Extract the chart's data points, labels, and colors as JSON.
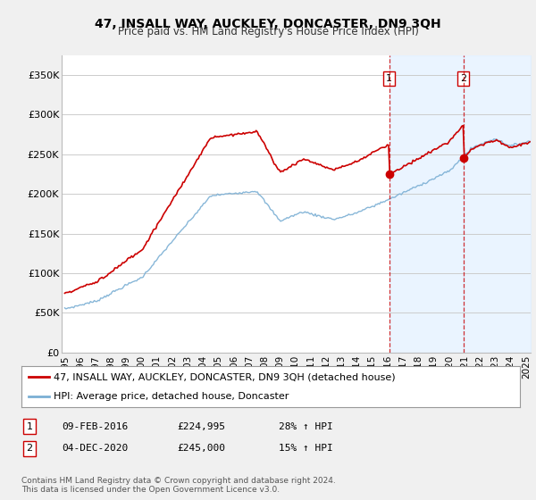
{
  "title": "47, INSALL WAY, AUCKLEY, DONCASTER, DN9 3QH",
  "subtitle": "Price paid vs. HM Land Registry's House Price Index (HPI)",
  "ylabel_ticks": [
    "£0",
    "£50K",
    "£100K",
    "£150K",
    "£200K",
    "£250K",
    "£300K",
    "£350K"
  ],
  "ytick_values": [
    0,
    50000,
    100000,
    150000,
    200000,
    250000,
    300000,
    350000
  ],
  "ylim": [
    0,
    375000
  ],
  "xlim_start": 1994.8,
  "xlim_end": 2025.3,
  "sale1_year": 2016.1,
  "sale1_price": 224995,
  "sale2_year": 2020.92,
  "sale2_price": 245000,
  "legend_property": "47, INSALL WAY, AUCKLEY, DONCASTER, DN9 3QH (detached house)",
  "legend_hpi": "HPI: Average price, detached house, Doncaster",
  "footer1": "Contains HM Land Registry data © Crown copyright and database right 2024.",
  "footer2": "This data is licensed under the Open Government Licence v3.0.",
  "table_rows": [
    {
      "num": "1",
      "date": "09-FEB-2016",
      "price": "£224,995",
      "change": "28% ↑ HPI"
    },
    {
      "num": "2",
      "date": "04-DEC-2020",
      "price": "£245,000",
      "change": "15% ↑ HPI"
    }
  ],
  "line_color_property": "#cc0000",
  "line_color_hpi": "#7bafd4",
  "background_color": "#f0f0f0",
  "plot_bg_color": "#ffffff",
  "grid_color": "#cccccc",
  "shade_color": "#ddeeff"
}
